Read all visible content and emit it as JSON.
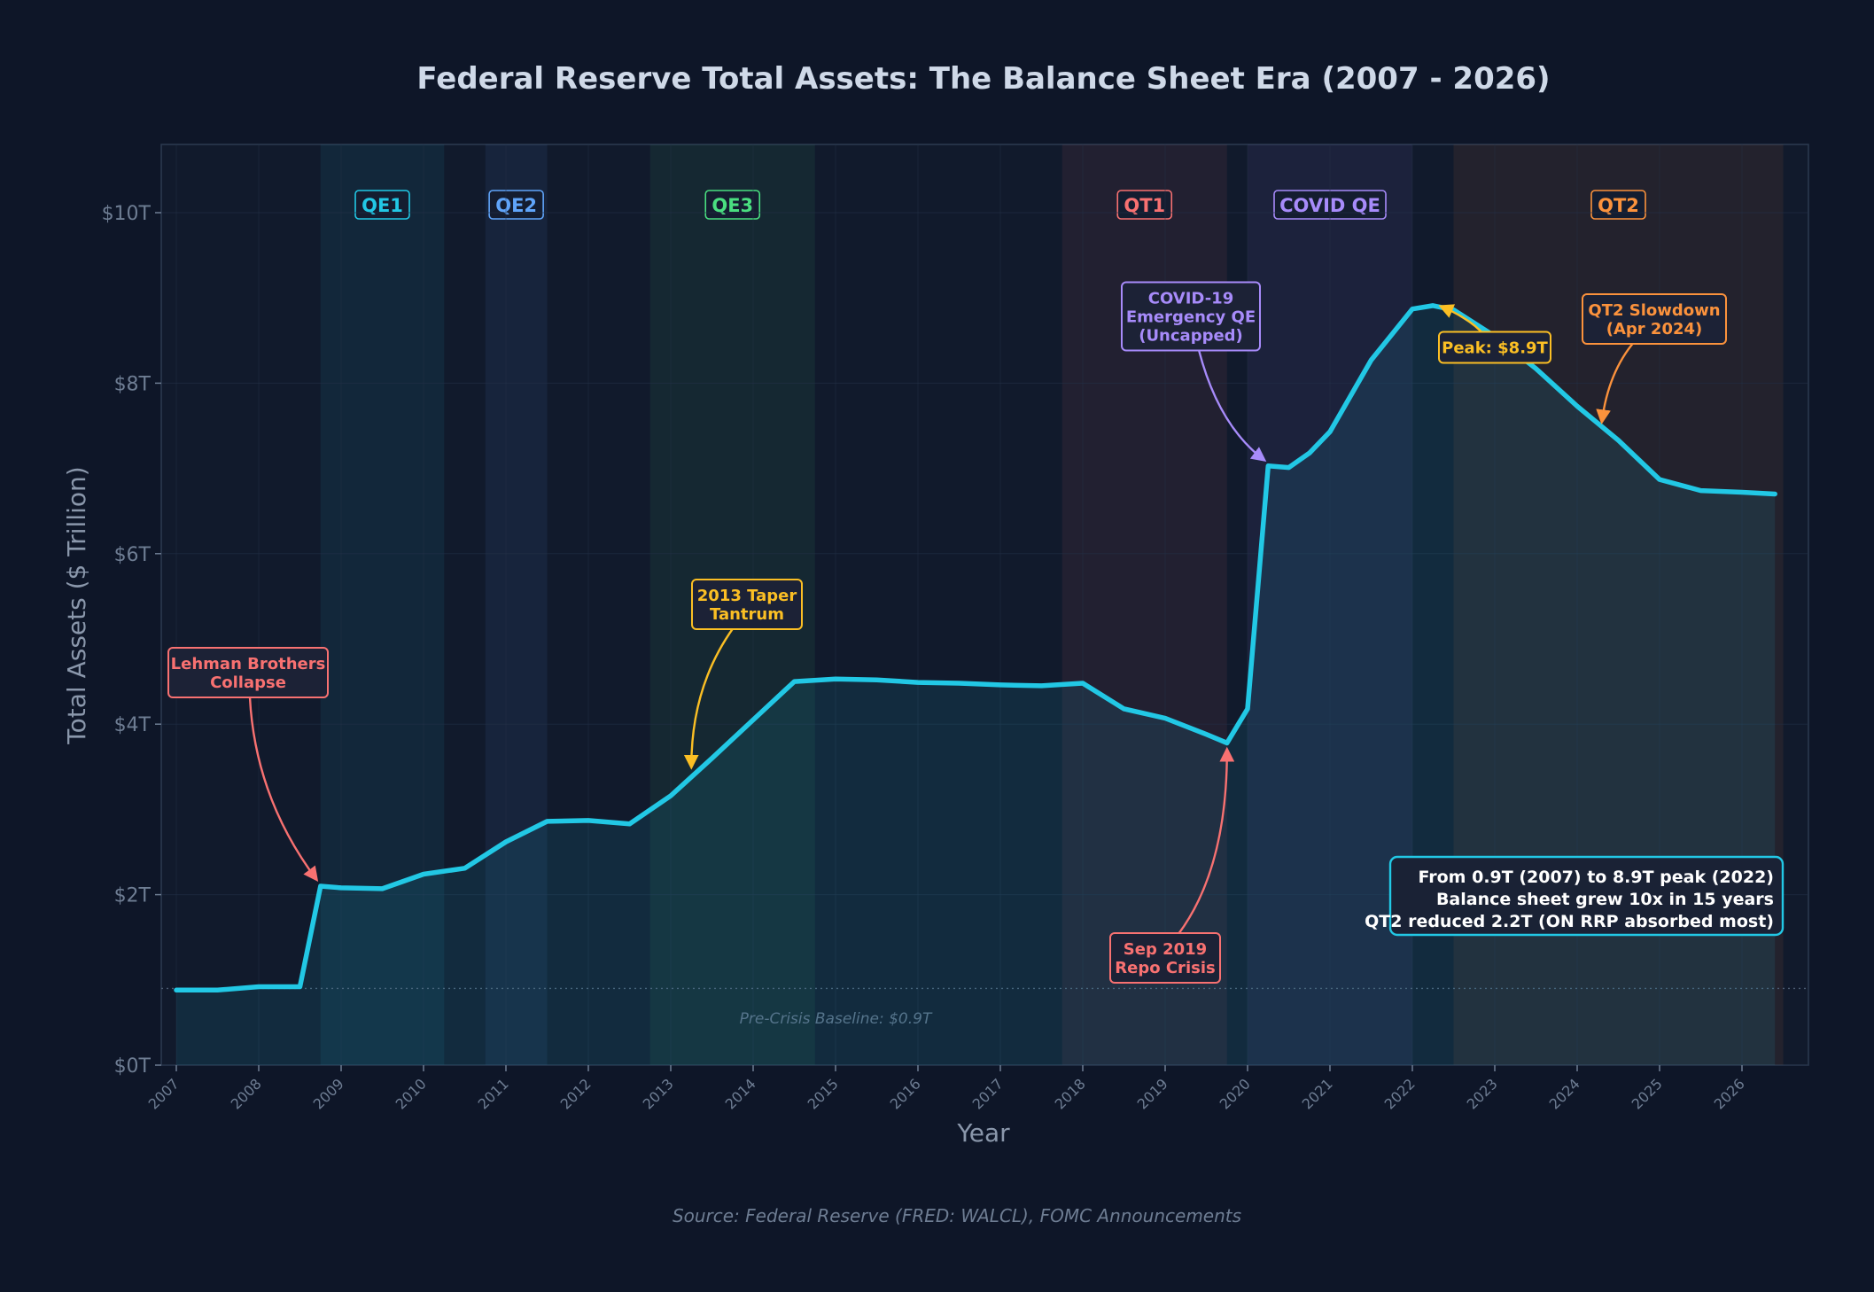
{
  "chart_data": {
    "type": "area",
    "title": "Federal Reserve Total Assets: The Balance Sheet Era (2007 - 2026)",
    "xlabel": "Year",
    "ylabel": "Total Assets ($ Trillion)",
    "source": "Source: Federal Reserve (FRED: WALCL), FOMC Announcements",
    "ylim": [
      0,
      10.8
    ],
    "xlim": [
      2006.8,
      2026.8
    ],
    "grid": true,
    "y_ticks": [
      {
        "value": 0,
        "label": "$0T"
      },
      {
        "value": 2,
        "label": "$2T"
      },
      {
        "value": 4,
        "label": "$4T"
      },
      {
        "value": 6,
        "label": "$6T"
      },
      {
        "value": 8,
        "label": "$8T"
      },
      {
        "value": 10,
        "label": "$10T"
      }
    ],
    "x_ticks": [
      "2007",
      "2008",
      "2009",
      "2010",
      "2011",
      "2012",
      "2013",
      "2014",
      "2015",
      "2016",
      "2017",
      "2018",
      "2019",
      "2020",
      "2021",
      "2022",
      "2023",
      "2024",
      "2025",
      "2026"
    ],
    "series": [
      {
        "color": "#22c8e5",
        "x": [
          2007.0,
          2007.5,
          2008.0,
          2008.5,
          2008.75,
          2009.0,
          2009.5,
          2010.0,
          2010.5,
          2011.0,
          2011.5,
          2012.0,
          2012.5,
          2013.0,
          2013.5,
          2014.0,
          2014.5,
          2015.0,
          2015.5,
          2016.0,
          2016.5,
          2017.0,
          2017.5,
          2018.0,
          2018.5,
          2019.0,
          2019.5,
          2019.75,
          2020.0,
          2020.25,
          2020.5,
          2020.75,
          2021.0,
          2021.5,
          2022.0,
          2022.25,
          2022.5,
          2023.0,
          2023.5,
          2024.0,
          2024.5,
          2025.0,
          2025.5,
          2026.0,
          2026.4
        ],
        "y": [
          0.88,
          0.88,
          0.92,
          0.92,
          2.1,
          2.08,
          2.07,
          2.24,
          2.31,
          2.62,
          2.86,
          2.87,
          2.83,
          3.16,
          3.6,
          4.05,
          4.5,
          4.53,
          4.52,
          4.49,
          4.48,
          4.46,
          4.45,
          4.48,
          4.18,
          4.07,
          3.88,
          3.78,
          4.18,
          7.03,
          7.01,
          7.18,
          7.43,
          8.27,
          8.87,
          8.91,
          8.86,
          8.55,
          8.17,
          7.73,
          7.33,
          6.87,
          6.74,
          6.72,
          6.7
        ]
      }
    ],
    "regions": [
      {
        "label": "QE1",
        "start": 2008.75,
        "end": 2010.25,
        "color": "#22c8e5"
      },
      {
        "label": "QE2",
        "start": 2010.75,
        "end": 2011.5,
        "color": "#60a5fa"
      },
      {
        "label": "QE3",
        "start": 2012.75,
        "end": 2014.75,
        "color": "#4ade80"
      },
      {
        "label": "QT1",
        "start": 2017.75,
        "end": 2019.75,
        "color": "#f87171"
      },
      {
        "label": "COVID QE",
        "start": 2020.0,
        "end": 2022.0,
        "color": "#a78bfa"
      },
      {
        "label": "QT2",
        "start": 2022.5,
        "end": 2026.5,
        "color": "#fb923c"
      }
    ],
    "baseline": {
      "value": 0.9,
      "label": "Pre-Crisis Baseline: $0.9T"
    },
    "annotations": [
      {
        "id": "lehman",
        "lines": [
          "Lehman Brothers",
          "Collapse"
        ],
        "color": "#f87171",
        "target": [
          2008.7,
          2.18
        ]
      },
      {
        "id": "taper",
        "lines": [
          "2013 Taper",
          "Tantrum"
        ],
        "color": "#fbbf24",
        "target": [
          2013.25,
          3.5
        ]
      },
      {
        "id": "repo",
        "lines": [
          "Sep 2019",
          "Repo Crisis"
        ],
        "color": "#f87171",
        "target": [
          2019.75,
          3.7
        ]
      },
      {
        "id": "covid",
        "lines": [
          "COVID-19",
          "Emergency QE",
          "(Uncapped)"
        ],
        "color": "#a78bfa",
        "target": [
          2020.2,
          7.1
        ]
      },
      {
        "id": "peak",
        "lines": [
          "Peak: $8.9T"
        ],
        "color": "#fbbf24",
        "target": [
          2022.35,
          8.9
        ]
      },
      {
        "id": "qt2slow",
        "lines": [
          "QT2 Slowdown",
          "(Apr 2024)"
        ],
        "color": "#fb923c",
        "target": [
          2024.3,
          7.55
        ]
      }
    ],
    "summary": [
      "From 0.9T (2007) to 8.9T peak (2022)",
      "Balance sheet grew 10x in 15 years",
      "QT2 reduced 2.2T (ON RRP absorbed most)"
    ]
  }
}
